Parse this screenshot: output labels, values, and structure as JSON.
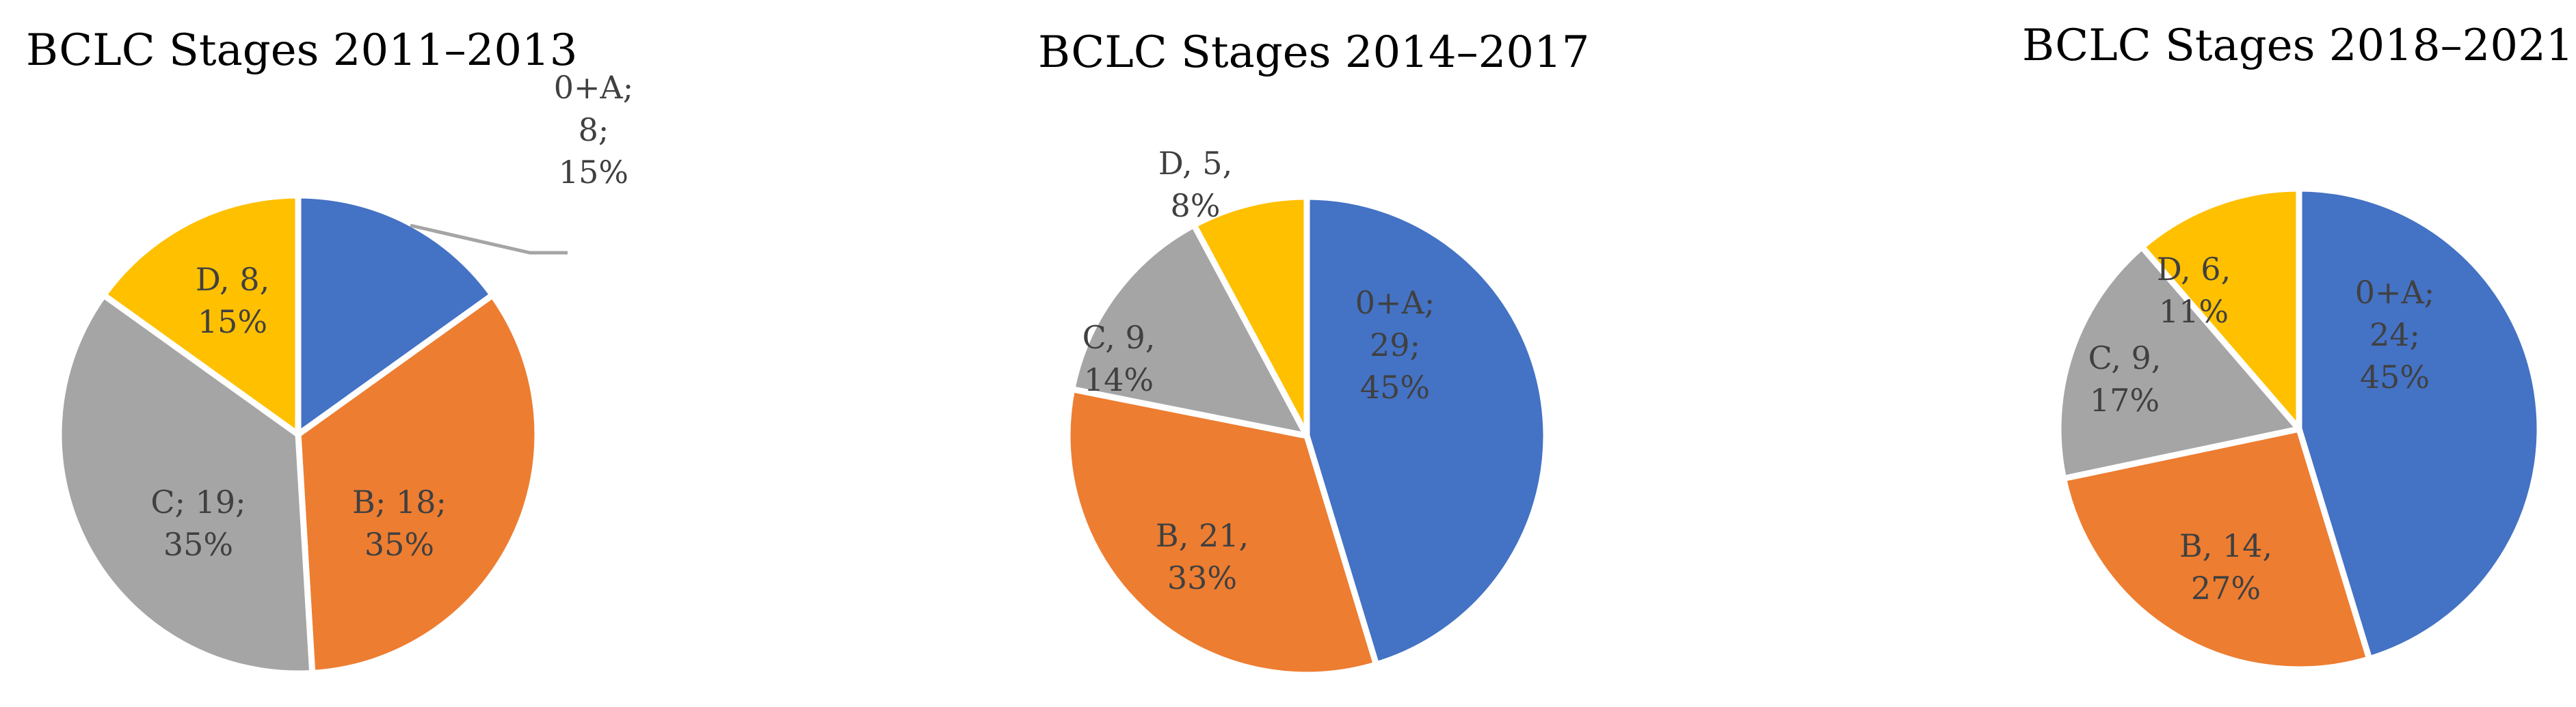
{
  "chart_data": [
    {
      "type": "pie",
      "title": "BCLC Stages 2011–2013",
      "slices": [
        {
          "category": "0+A",
          "value": 8,
          "percent": "15%",
          "color": "#4472C4",
          "label_lines": [
            "0+A;",
            "8;",
            "15%"
          ]
        },
        {
          "category": "B",
          "value": 18,
          "percent": "35%",
          "color": "#ED7D31",
          "label_lines": [
            "B; 18;",
            "35%"
          ]
        },
        {
          "category": "C",
          "value": 19,
          "percent": "35%",
          "color": "#A5A5A5",
          "label_lines": [
            "C; 19;",
            "35%"
          ]
        },
        {
          "category": "D",
          "value": 8,
          "percent": "15%",
          "color": "#FFC000",
          "label_lines": [
            "D, 8,",
            "15%"
          ]
        }
      ]
    },
    {
      "type": "pie",
      "title": "BCLC Stages 2014–2017",
      "slices": [
        {
          "category": "0+A",
          "value": 29,
          "percent": "45%",
          "color": "#4472C4",
          "label_lines": [
            "0+A;",
            "29;",
            "45%"
          ]
        },
        {
          "category": "B",
          "value": 21,
          "percent": "33%",
          "color": "#ED7D31",
          "label_lines": [
            "B, 21,",
            "33%"
          ]
        },
        {
          "category": "C",
          "value": 9,
          "percent": "14%",
          "color": "#A5A5A5",
          "label_lines": [
            "C, 9,",
            "14%"
          ]
        },
        {
          "category": "D",
          "value": 5,
          "percent": "8%",
          "color": "#FFC000",
          "label_lines": [
            "D, 5,",
            "8%"
          ]
        }
      ]
    },
    {
      "type": "pie",
      "title": "BCLC Stages 2018–2021",
      "slices": [
        {
          "category": "0+A",
          "value": 24,
          "percent": "45%",
          "color": "#4472C4",
          "label_lines": [
            "0+A;",
            "24;",
            "45%"
          ]
        },
        {
          "category": "B",
          "value": 14,
          "percent": "27%",
          "color": "#ED7D31",
          "label_lines": [
            "B, 14,",
            "27%"
          ]
        },
        {
          "category": "C",
          "value": 9,
          "percent": "17%",
          "color": "#A5A5A5",
          "label_lines": [
            "C, 9,",
            "17%"
          ]
        },
        {
          "category": "D",
          "value": 6,
          "percent": "11%",
          "color": "#FFC000",
          "label_lines": [
            "D, 6,",
            "11%"
          ]
        }
      ]
    }
  ]
}
